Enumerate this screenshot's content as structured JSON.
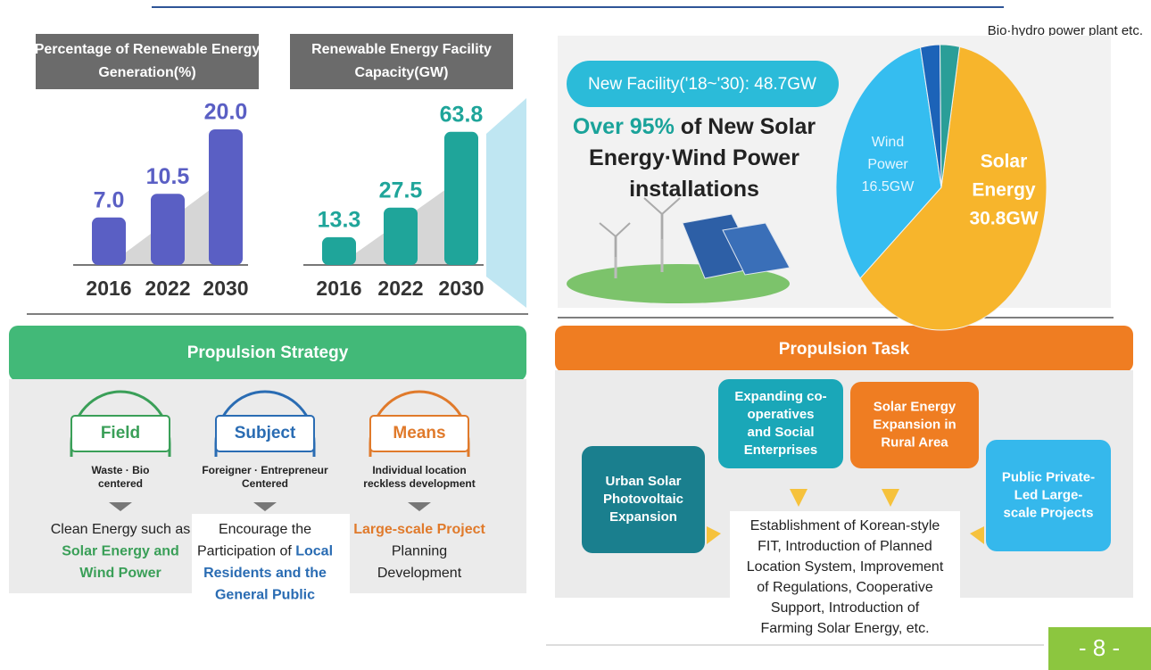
{
  "header_note": "Bio·hydro power plant etc.",
  "generation_chart": {
    "type": "bar",
    "title_lines": [
      "Percentage of Renewable Energy",
      "Generation(%)"
    ],
    "categories": [
      "2016",
      "2022",
      "2030"
    ],
    "values": [
      7,
      10.5,
      20
    ],
    "value_labels": [
      "7.0",
      "10.5",
      "20.0"
    ],
    "color": "#5a5fc4",
    "ylim": [
      0,
      20
    ]
  },
  "capacity_chart": {
    "type": "bar",
    "title_lines": [
      "Renewable Energy Facility",
      "Capacity(GW)"
    ],
    "categories": [
      "2016",
      "2022",
      "2030"
    ],
    "values": [
      13.3,
      27.5,
      63.8
    ],
    "value_labels": [
      "13.3",
      "27.5",
      "63.8"
    ],
    "color": "#1fa59a",
    "ylim": [
      0,
      65
    ]
  },
  "new_facility": {
    "pill": "New Facility('18~'30): 48.7GW",
    "headline": [
      [
        {
          "text": "Over 95%",
          "accent": true
        },
        {
          "text": " of New Solar",
          "accent": false
        }
      ],
      [
        {
          "text": "Energy·Wind Power",
          "accent": false
        }
      ],
      [
        {
          "text": "installations",
          "accent": false
        }
      ]
    ],
    "accent_color": "#1aa39a"
  },
  "pie": {
    "type": "pie",
    "values": [
      30.8,
      16.5,
      1.5,
      1.5
    ],
    "colors": [
      "#f7b52c",
      "#35bdf0",
      "#1c63b8",
      "#2a9e98"
    ],
    "labels": [
      [
        "Solar",
        "Energy",
        "30.8GW"
      ],
      [
        "Wind",
        "Power",
        "16.5GW"
      ],
      null,
      null
    ],
    "label_colors": [
      "#ffffff",
      "#e6f6ff",
      null,
      null
    ]
  },
  "strategy": {
    "title": "Propulsion Strategy",
    "columns": [
      {
        "label": "Field",
        "color": "#3a9f58",
        "sub": [
          "Waste · Bio",
          "centered"
        ],
        "desc": [
          [
            {
              "text": "Clean Energy such as",
              "accent": false
            }
          ],
          [
            {
              "text": "Solar Energy and",
              "accent": true
            }
          ],
          [
            {
              "text": "Wind Power",
              "accent": true
            }
          ]
        ]
      },
      {
        "label": "Subject",
        "color": "#2a6cb3",
        "sub": [
          "Foreigner · Entrepreneur",
          "Centered"
        ],
        "desc": [
          [
            {
              "text": "Encourage the",
              "accent": false
            }
          ],
          [
            {
              "text": "Participation of ",
              "accent": false
            },
            {
              "text": "Local",
              "accent": true
            }
          ],
          [
            {
              "text": "Residents and the",
              "accent": true
            }
          ],
          [
            {
              "text": "General Public",
              "accent": true
            }
          ]
        ]
      },
      {
        "label": "Means",
        "color": "#e07a2b",
        "sub": [
          "Individual location",
          "reckless development"
        ],
        "desc": [
          [
            {
              "text": "Large-scale Project",
              "accent": true
            }
          ],
          [
            {
              "text": "Planning",
              "accent": false
            }
          ],
          [
            {
              "text": "Development",
              "accent": false
            }
          ]
        ]
      }
    ]
  },
  "task": {
    "title": "Propulsion Task",
    "boxes": [
      {
        "lines": [
          "Urban Solar",
          "Photovoltaic",
          "Expansion"
        ],
        "color": "#1a7f8e"
      },
      {
        "lines": [
          "Expanding co-",
          "operatives",
          "and Social",
          "Enterprises"
        ],
        "color": "#1aa7b8"
      },
      {
        "lines": [
          "Solar Energy",
          "Expansion in",
          "Rural Area"
        ],
        "color": "#ef7d22"
      },
      {
        "lines": [
          "Public Private-",
          "Led Large-",
          "scale Projects"
        ],
        "color": "#35b8ec"
      }
    ],
    "center": [
      "Establishment of Korean-style",
      "FIT, Introduction of Planned",
      "Location System, Improvement",
      "of Regulations, Cooperative",
      "Support, Introduction of",
      "Farming Solar Energy, etc."
    ]
  },
  "page_number": "- 8 -"
}
